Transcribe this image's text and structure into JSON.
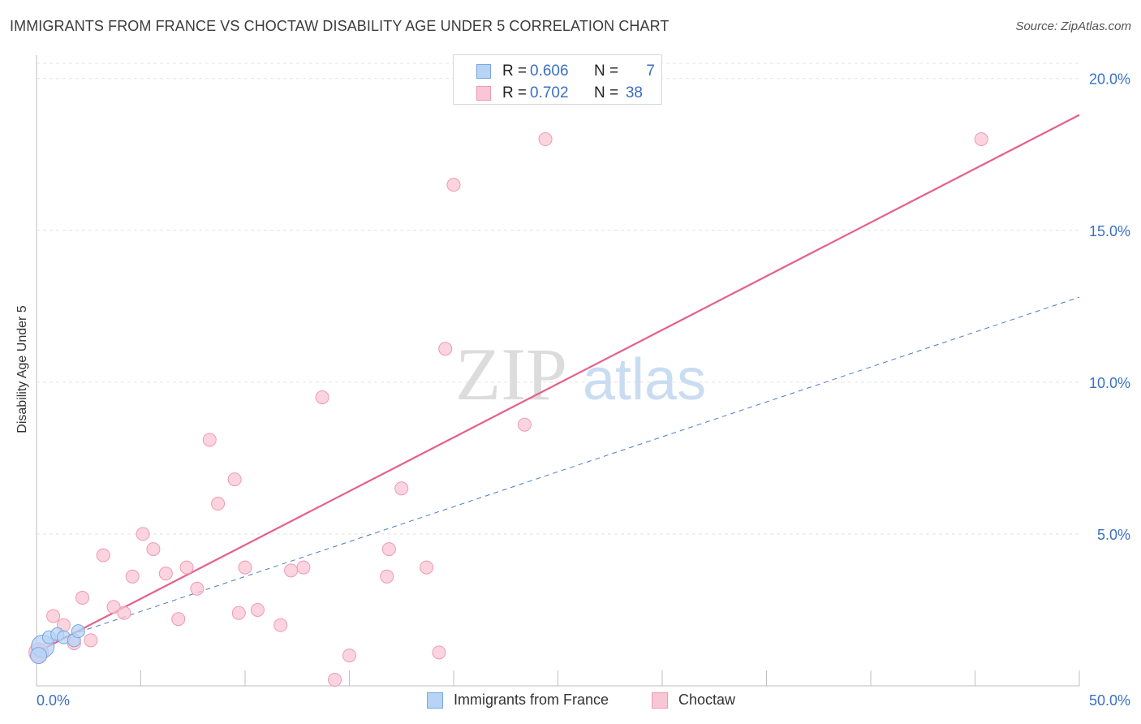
{
  "title": "IMMIGRANTS FROM FRANCE VS CHOCTAW DISABILITY AGE UNDER 5 CORRELATION CHART",
  "source": "Source: ZipAtlas.com",
  "watermark": {
    "zip": "ZIP",
    "atlas": "atlas"
  },
  "colors": {
    "france_fill": "#b7d3f6",
    "france_stroke": "#7aa6e0",
    "france_line": "#4a7cc6",
    "choctaw_fill": "#f9c6d5",
    "choctaw_stroke": "#ee9ab4",
    "choctaw_line": "#e4608a",
    "axis_label": "#3a6fc4",
    "grid": "#e3e3e3"
  },
  "stats": {
    "france": {
      "r_label": "R =",
      "r_value": "0.606",
      "n_label": "N =",
      "n_value": "7"
    },
    "choctaw": {
      "r_label": "R =",
      "r_value": "0.702",
      "n_label": "N =",
      "n_value": "38"
    }
  },
  "legend": {
    "france": "Immigrants from France",
    "choctaw": "Choctaw"
  },
  "chart_data": {
    "type": "scatter",
    "title": "IMMIGRANTS FROM FRANCE VS CHOCTAW DISABILITY AGE UNDER 5 CORRELATION CHART",
    "xlabel": "",
    "ylabel": "Disability Age Under 5",
    "xlim": [
      0,
      50
    ],
    "ylim": [
      0,
      20.5
    ],
    "x_tick_labels": [
      {
        "value": 0,
        "label": "0.0%"
      },
      {
        "value": 50,
        "label": "50.0%"
      }
    ],
    "y_tick_labels": [
      {
        "value": 5,
        "label": "5.0%"
      },
      {
        "value": 10,
        "label": "10.0%"
      },
      {
        "value": 15,
        "label": "15.0%"
      },
      {
        "value": 20,
        "label": "20.0%"
      }
    ],
    "x_minor_ticks": [
      5,
      10,
      15,
      20,
      25,
      30,
      35,
      40,
      45,
      50
    ],
    "grid": true,
    "series": [
      {
        "name": "Immigrants from France",
        "points": [
          [
            0.3,
            1.3,
            14
          ],
          [
            0.6,
            1.6,
            8
          ],
          [
            1.0,
            1.7,
            8
          ],
          [
            1.3,
            1.6,
            8
          ],
          [
            1.8,
            1.5,
            8
          ],
          [
            2.0,
            1.8,
            8
          ],
          [
            0.1,
            1.0,
            10
          ]
        ],
        "trend": {
          "x0": 0,
          "y0": 1.3,
          "x1": 50,
          "y1": 12.8,
          "style": "dashed"
        }
      },
      {
        "name": "Choctaw",
        "points": [
          [
            0.1,
            1.1,
            12
          ],
          [
            0.8,
            2.3,
            8
          ],
          [
            1.3,
            2.0,
            8
          ],
          [
            1.8,
            1.4,
            8
          ],
          [
            2.2,
            2.9,
            8
          ],
          [
            2.6,
            1.5,
            8
          ],
          [
            3.2,
            4.3,
            8
          ],
          [
            3.7,
            2.6,
            8
          ],
          [
            4.2,
            2.4,
            8
          ],
          [
            4.6,
            3.6,
            8
          ],
          [
            5.1,
            5.0,
            8
          ],
          [
            5.6,
            4.5,
            8
          ],
          [
            6.2,
            3.7,
            8
          ],
          [
            6.8,
            2.2,
            8
          ],
          [
            7.2,
            3.9,
            8
          ],
          [
            7.7,
            3.2,
            8
          ],
          [
            8.3,
            8.1,
            8
          ],
          [
            8.7,
            6.0,
            8
          ],
          [
            9.5,
            6.8,
            8
          ],
          [
            9.7,
            2.4,
            8
          ],
          [
            10.0,
            3.9,
            8
          ],
          [
            10.6,
            2.5,
            8
          ],
          [
            11.7,
            2.0,
            8
          ],
          [
            12.2,
            3.8,
            8
          ],
          [
            12.8,
            3.9,
            8
          ],
          [
            13.7,
            9.5,
            8
          ],
          [
            14.3,
            0.2,
            8
          ],
          [
            15.0,
            1.0,
            8
          ],
          [
            16.8,
            3.6,
            8
          ],
          [
            16.9,
            4.5,
            8
          ],
          [
            17.5,
            6.5,
            8
          ],
          [
            18.7,
            3.9,
            8
          ],
          [
            19.3,
            1.1,
            8
          ],
          [
            19.6,
            11.1,
            8
          ],
          [
            20.0,
            16.5,
            8
          ],
          [
            23.4,
            8.6,
            8
          ],
          [
            24.4,
            18.0,
            8
          ],
          [
            45.3,
            18.0,
            8
          ]
        ],
        "trend": {
          "x0": 0,
          "y0": 1.1,
          "x1": 50,
          "y1": 18.8,
          "style": "solid"
        }
      }
    ]
  }
}
